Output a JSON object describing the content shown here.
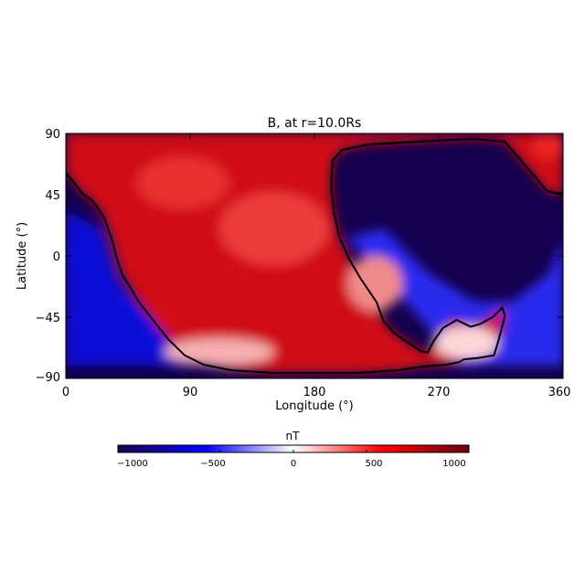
{
  "chart_data": {
    "type": "heatmap",
    "title": "B, at r=10.0Rs",
    "xlabel": "Longitude (°)",
    "ylabel": "Latitude (°)",
    "xlim": [
      0,
      360
    ],
    "ylim": [
      -90,
      90
    ],
    "xticks": [
      "0",
      "90",
      "180",
      "270",
      "360"
    ],
    "xtick_values": [
      0,
      90,
      180,
      270,
      360
    ],
    "yticks": [
      "90",
      "45",
      "0",
      "−45",
      "−90"
    ],
    "ytick_values": [
      90,
      45,
      0,
      -45,
      -90
    ],
    "colorbar": {
      "label": "nT",
      "range": [
        -1200,
        1200
      ],
      "ticks": [
        "−1000",
        "−500",
        "0",
        "500",
        "1000"
      ],
      "tick_values": [
        -1000,
        -500,
        0,
        500,
        1000
      ],
      "colors": [
        "#1a0050",
        "#0000ff",
        "#ffffff",
        "#ff0000",
        "#6a0010"
      ]
    },
    "neutral_line": {
      "color": "#000000",
      "points": [
        [
          0,
          61
        ],
        [
          5,
          55
        ],
        [
          12,
          46
        ],
        [
          20,
          40
        ],
        [
          28,
          28
        ],
        [
          34,
          10
        ],
        [
          37,
          -2
        ],
        [
          41,
          -14
        ],
        [
          46,
          -22
        ],
        [
          53,
          -34
        ],
        [
          63,
          -47
        ],
        [
          74,
          -61
        ],
        [
          86,
          -73
        ],
        [
          100,
          -80
        ],
        [
          120,
          -84
        ],
        [
          150,
          -86
        ],
        [
          180,
          -86
        ],
        [
          210,
          -86
        ],
        [
          240,
          -84
        ],
        [
          260,
          -81
        ],
        [
          275,
          -80
        ],
        [
          285,
          -78
        ],
        [
          288,
          -76
        ],
        [
          298,
          -75
        ],
        [
          310,
          -73
        ],
        [
          313,
          -63
        ],
        [
          318,
          -44
        ],
        [
          316,
          -38
        ],
        [
          309,
          -45
        ],
        [
          300,
          -50
        ],
        [
          293,
          -52
        ],
        [
          283,
          -47
        ],
        [
          273,
          -53
        ],
        [
          266,
          -63
        ],
        [
          262,
          -71
        ],
        [
          257,
          -70
        ],
        [
          248,
          -64
        ],
        [
          238,
          -57
        ],
        [
          230,
          -48
        ],
        [
          225,
          -34
        ],
        [
          213,
          -16
        ],
        [
          205,
          -2
        ],
        [
          198,
          14
        ],
        [
          194,
          32
        ],
        [
          192,
          52
        ],
        [
          193,
          70
        ],
        [
          200,
          78
        ],
        [
          220,
          82
        ],
        [
          255,
          84
        ],
        [
          295,
          86
        ],
        [
          318,
          84
        ],
        [
          328,
          72
        ],
        [
          340,
          58
        ],
        [
          348,
          48
        ],
        [
          355,
          46
        ],
        [
          360,
          46
        ]
      ]
    }
  }
}
